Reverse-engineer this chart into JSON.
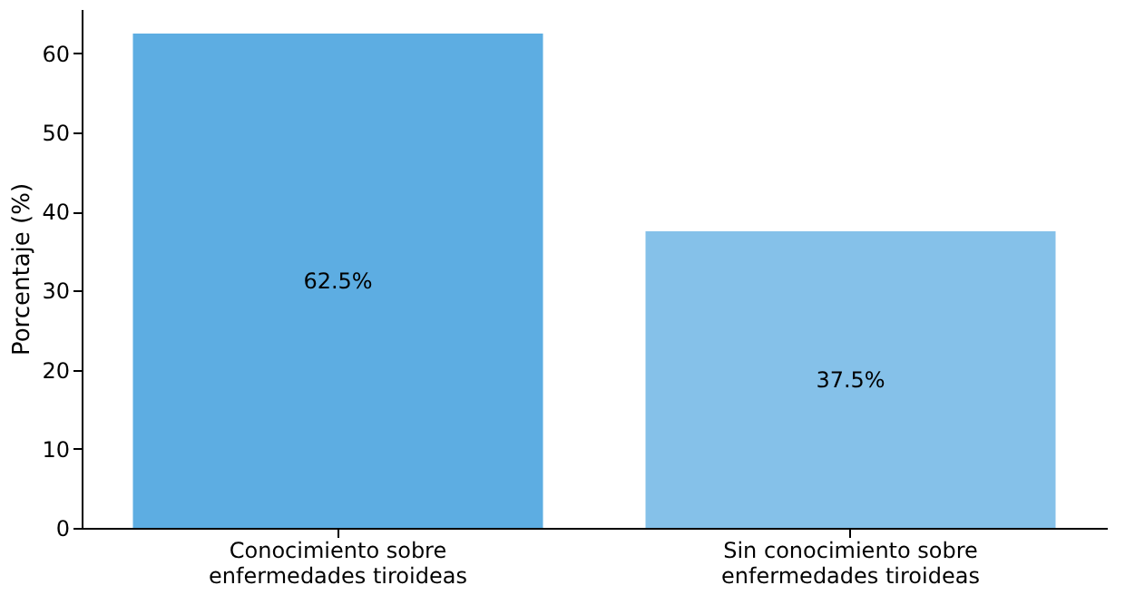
{
  "chart_data": {
    "type": "bar",
    "ylabel": "Porcentaje (%)",
    "categories": [
      "Conocimiento sobre enfermedades tiroideas",
      "Sin conocimiento sobre enfermedades tiroideas"
    ],
    "values": [
      62.5,
      37.5
    ],
    "colors": [
      "#5dade2",
      "#85c1e9"
    ],
    "value_labels": [
      "62.5%",
      "37.5%"
    ],
    "ylim": [
      0,
      65.6
    ],
    "yticks": [
      0,
      10,
      20,
      30,
      40,
      50,
      60
    ],
    "grid": false
  }
}
